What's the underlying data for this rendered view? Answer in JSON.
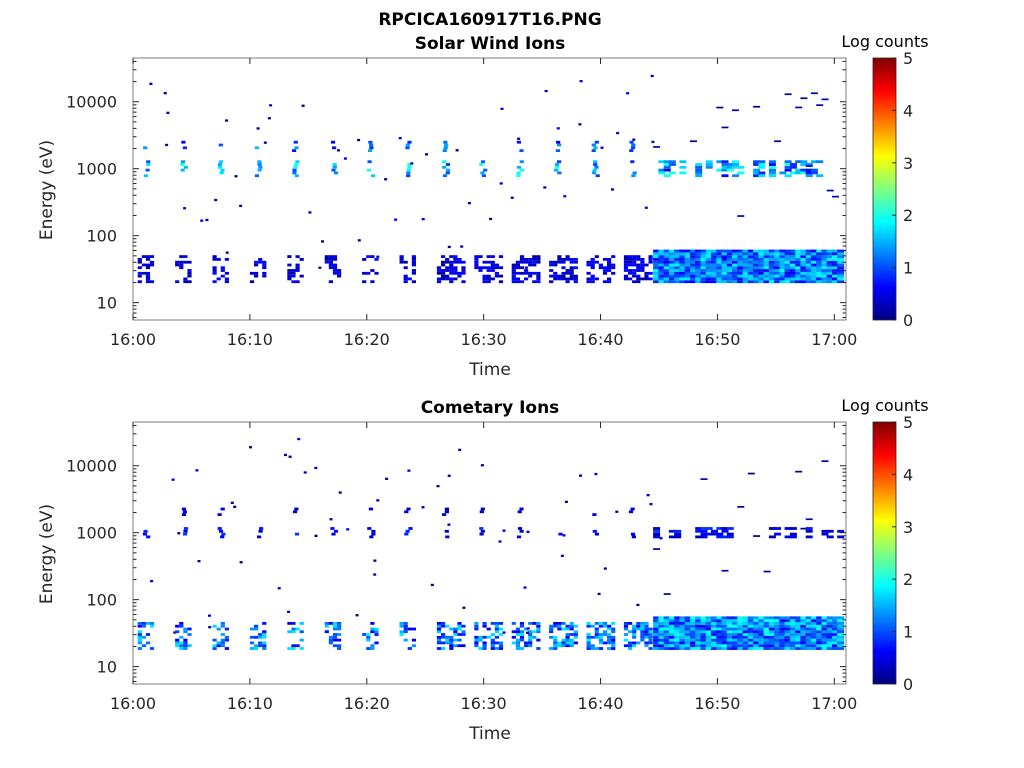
{
  "figure_title": "RPCICA160917T16.PNG",
  "palette": {
    "axis": "#262626",
    "colorbar_stops": [
      "#000080",
      "#0000ff",
      "#0080ff",
      "#00ffff",
      "#80ff80",
      "#ffff00",
      "#ff8000",
      "#ff0000",
      "#800000"
    ]
  },
  "chart_data": [
    {
      "type": "heatmap",
      "title": "Solar Wind Ions",
      "xlabel": "Time",
      "ylabel": "Energy (eV)",
      "x_tick_labels": [
        "16:00",
        "16:10",
        "16:20",
        "16:30",
        "16:40",
        "16:50",
        "17:00"
      ],
      "x_range_minutes": [
        0,
        61
      ],
      "y_scale": "log",
      "y_ticks": [
        10,
        100,
        1000,
        10000
      ],
      "y_tick_labels": [
        "10",
        "100",
        "1000",
        "10000"
      ],
      "y_range": [
        5.5,
        45000
      ],
      "colorbar": {
        "label": "Log counts",
        "range": [
          0,
          5
        ],
        "ticks": [
          "0",
          "1",
          "2",
          "3",
          "4",
          "5"
        ],
        "colormap": "jet"
      },
      "features": {
        "sweep_period_min": 3.2,
        "sweep_start_min": 0.8,
        "band_1000eV": {
          "energy_range_eV": [
            750,
            1300
          ],
          "log_counts": 1.6
        },
        "band_2000eV": {
          "energy_range_eV": [
            1800,
            2500
          ],
          "log_counts": 1.2
        },
        "low_energy_band": {
          "energy_range_eV": [
            20,
            50
          ],
          "log_counts_early": 0.6,
          "log_counts_late": 1.7,
          "continuous_after_min": 44.5
        },
        "scattered_counts_eV": [
          50,
          5000,
          20000
        ]
      }
    },
    {
      "type": "heatmap",
      "title": "Cometary Ions",
      "xlabel": "Time",
      "ylabel": "Energy (eV)",
      "x_tick_labels": [
        "16:00",
        "16:10",
        "16:20",
        "16:30",
        "16:40",
        "16:50",
        "17:00"
      ],
      "x_range_minutes": [
        0,
        61
      ],
      "y_scale": "log",
      "y_ticks": [
        10,
        100,
        1000,
        10000
      ],
      "y_tick_labels": [
        "10",
        "100",
        "1000",
        "10000"
      ],
      "y_range": [
        5.5,
        45000
      ],
      "colorbar": {
        "label": "Log counts",
        "range": [
          0,
          5
        ],
        "ticks": [
          "0",
          "1",
          "2",
          "3",
          "4",
          "5"
        ],
        "colormap": "jet"
      },
      "features": {
        "sweep_period_min": 3.2,
        "sweep_start_min": 0.8,
        "band_1000eV": {
          "energy_range_eV": [
            850,
            1150
          ],
          "log_counts": 0.7
        },
        "band_2000eV": {
          "energy_range_eV": [
            1900,
            2300
          ],
          "log_counts": 0.4
        },
        "low_energy_band": {
          "energy_range_eV": [
            18,
            45
          ],
          "log_counts_early": 1.5,
          "log_counts_late": 1.8,
          "continuous_after_min": 44.5
        },
        "scattered_counts_eV": [
          60,
          300
        ]
      }
    }
  ]
}
